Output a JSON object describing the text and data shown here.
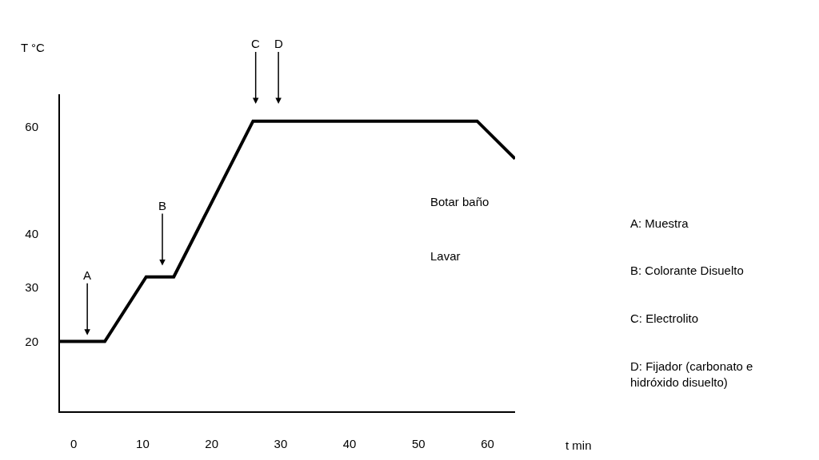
{
  "chart_data": {
    "type": "line",
    "xlabel": "t min",
    "ylabel": "T °C",
    "x": [
      -2,
      4.5,
      10.5,
      14.5,
      26,
      58.5,
      64
    ],
    "series": [
      {
        "color": "#000000",
        "values": [
          20,
          20,
          32,
          32,
          61,
          61,
          54
        ]
      }
    ],
    "xlim": [
      -2,
      64
    ],
    "ylim": [
      7,
      66
    ],
    "xticks": [
      0,
      10,
      20,
      30,
      40,
      50,
      60
    ],
    "yticks": [
      20,
      30,
      40,
      60
    ],
    "annotations": [
      "A",
      "B",
      "C",
      "D",
      "Botar baño",
      "Lavar",
      "A: Muestra",
      "B: Colorante Disuelto",
      "C: Electrolito",
      "D: Fijador (carbonato e\nhidróxido disuelto)"
    ]
  }
}
